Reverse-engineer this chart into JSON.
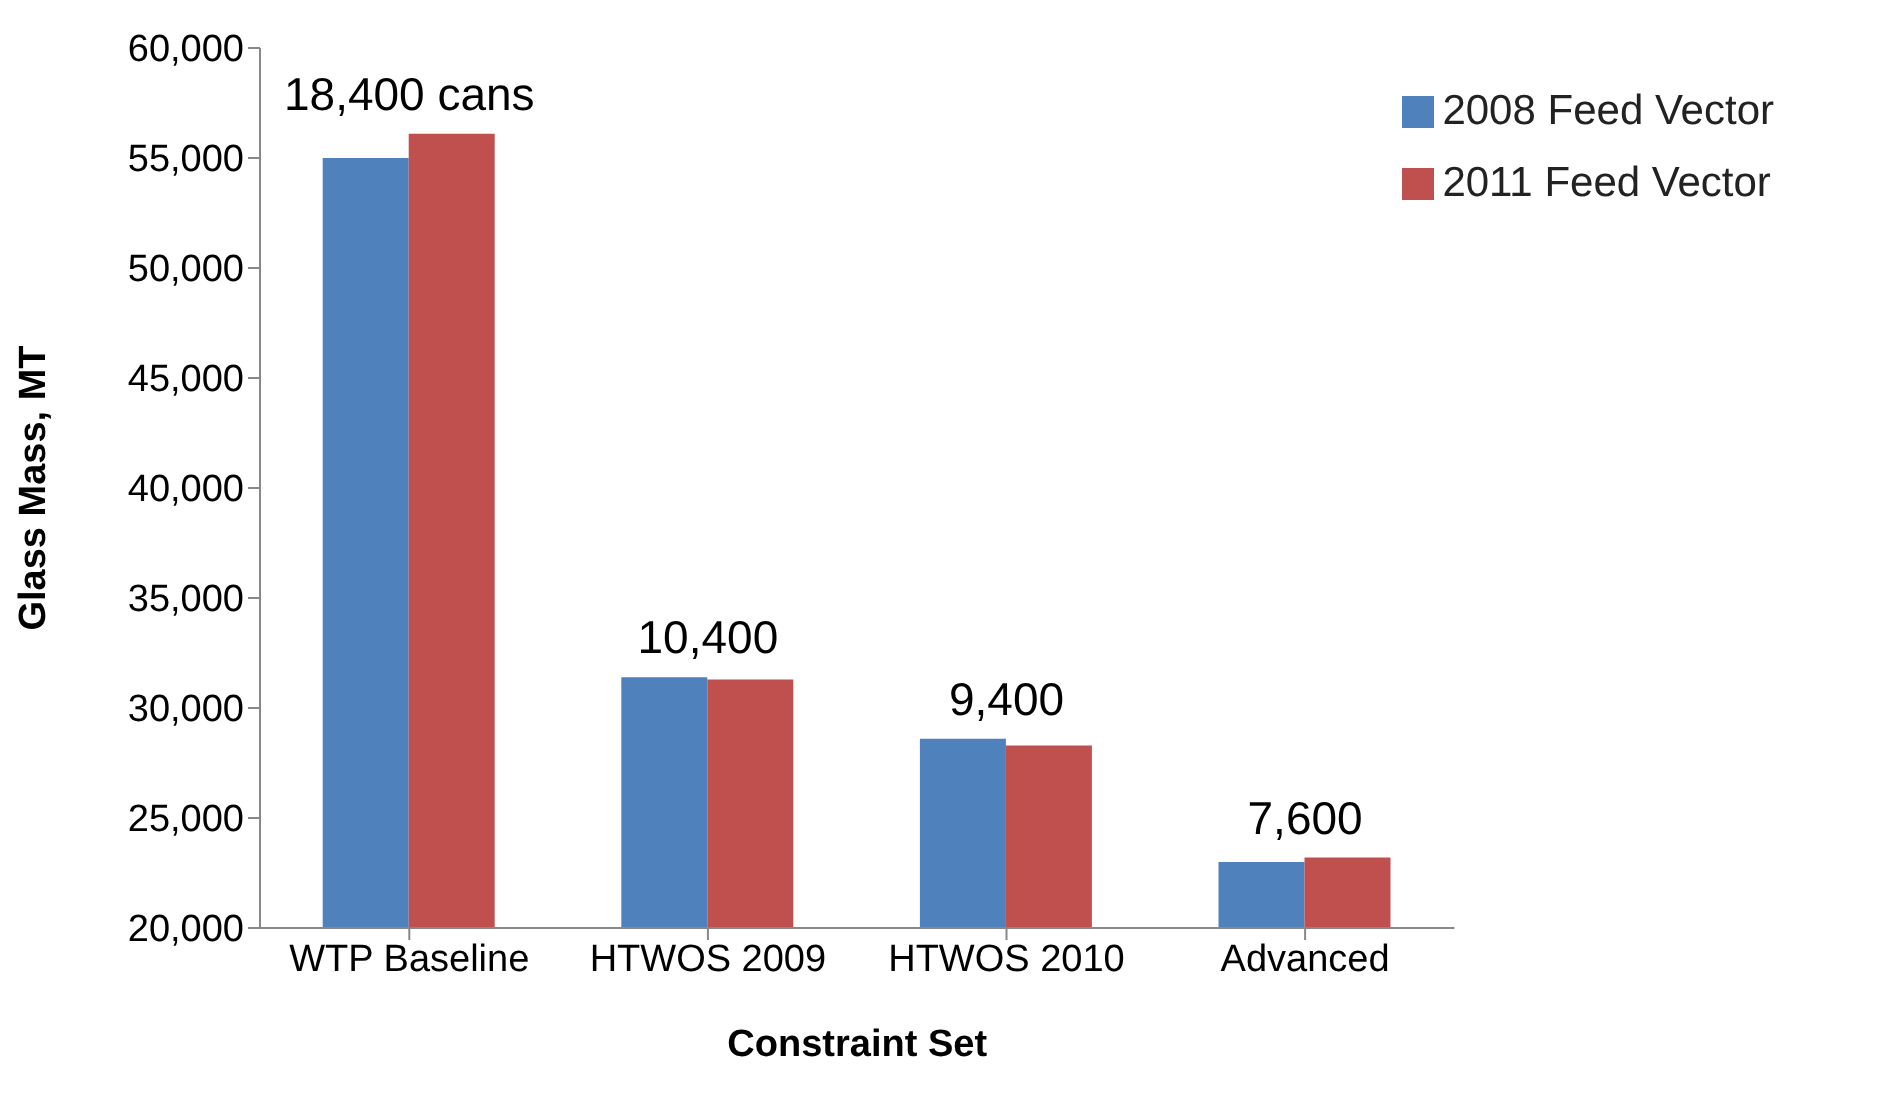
{
  "chart_data": {
    "type": "bar",
    "xlabel": "Constraint Set",
    "ylabel": "Glass Mass, MT",
    "categories": [
      "WTP Baseline",
      "HTWOS 2009",
      "HTWOS 2010",
      "Advanced"
    ],
    "series": [
      {
        "name": "2008 Feed Vector",
        "color": "#4f81bd",
        "values": [
          55000,
          31400,
          28600,
          23000
        ]
      },
      {
        "name": "2011 Feed Vector",
        "color": "#c0504d",
        "values": [
          56100,
          31300,
          28300,
          23200
        ]
      }
    ],
    "ylim": [
      20000,
      60000
    ],
    "yticks": [
      {
        "value": 20000,
        "label": "20,000"
      },
      {
        "value": 25000,
        "label": "25,000"
      },
      {
        "value": 30000,
        "label": "30,000"
      },
      {
        "value": 35000,
        "label": "35,000"
      },
      {
        "value": 40000,
        "label": "40,000"
      },
      {
        "value": 45000,
        "label": "45,000"
      },
      {
        "value": 50000,
        "label": "50,000"
      },
      {
        "value": 55000,
        "label": "55,000"
      },
      {
        "value": 60000,
        "label": "60,000"
      }
    ],
    "grid": false,
    "legend": "top right",
    "annotations": [
      {
        "text": "18,400 cans",
        "x": "WTP Baseline",
        "y": 56100
      },
      {
        "text": "10,400",
        "x": "HTWOS 2009",
        "y": 31400
      },
      {
        "text": "9,400",
        "x": "HTWOS 2010",
        "y": 28600
      },
      {
        "text": "7,600",
        "x": "Advanced",
        "y": 23200
      }
    ]
  }
}
